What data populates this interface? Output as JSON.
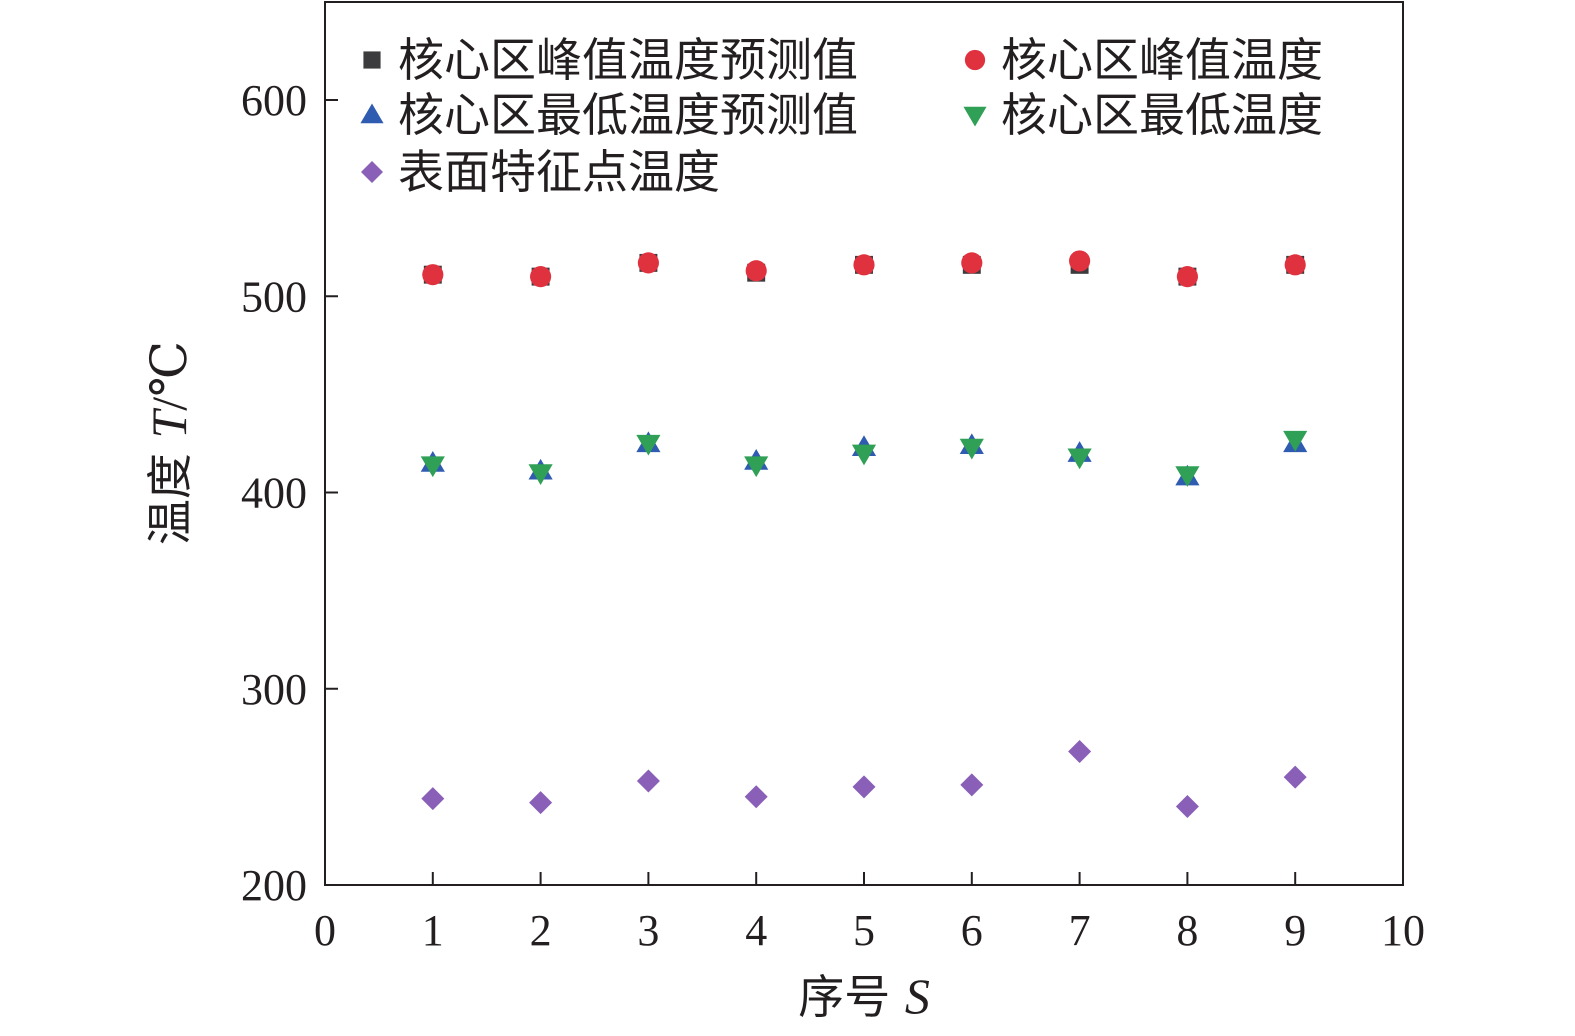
{
  "chart_data": {
    "type": "scatter",
    "xlabel": {
      "text": "序号",
      "var": "S"
    },
    "ylabel": {
      "text": "温度",
      "var": "T",
      "unit": "/℃"
    },
    "xlim": [
      0,
      10
    ],
    "ylim": [
      200,
      650
    ],
    "xticks": [
      0,
      1,
      2,
      3,
      4,
      5,
      6,
      7,
      8,
      9,
      10
    ],
    "yticks": [
      200,
      300,
      400,
      500,
      600
    ],
    "grid": false,
    "legend_position": "top-left",
    "x": [
      1,
      2,
      3,
      4,
      5,
      6,
      7,
      8,
      9
    ],
    "series": [
      {
        "name": "核心区峰值温度预测值",
        "marker": "square",
        "color": "#3c3c3e",
        "values": [
          511,
          510,
          517,
          512,
          516,
          516,
          516,
          510,
          516
        ]
      },
      {
        "name": "核心区峰值温度",
        "marker": "circle",
        "color": "#e0313f",
        "values": [
          511,
          510,
          517,
          513,
          516,
          517,
          518,
          510,
          516
        ]
      },
      {
        "name": "核心区最低温度预测值",
        "marker": "triangle-up",
        "color": "#2f5bb0",
        "values": [
          415,
          411,
          425,
          416,
          423,
          424,
          420,
          408,
          425
        ]
      },
      {
        "name": "核心区最低温度",
        "marker": "triangle-down",
        "color": "#2fa055",
        "values": [
          414,
          410,
          425,
          414,
          420,
          423,
          418,
          409,
          427
        ]
      },
      {
        "name": "表面特征点温度",
        "marker": "diamond",
        "color": "#8a5fb8",
        "values": [
          244,
          242,
          253,
          245,
          250,
          251,
          268,
          240,
          255
        ]
      }
    ]
  }
}
